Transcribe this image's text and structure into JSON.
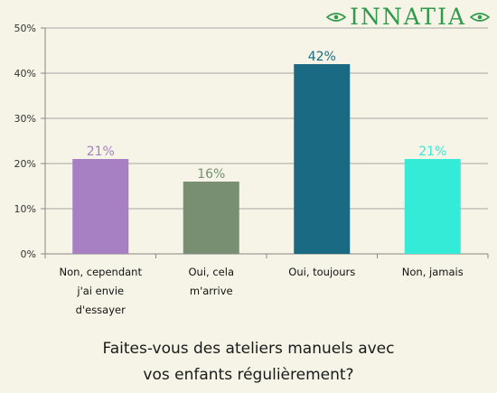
{
  "logo": {
    "text": "INNATIA",
    "icon": "leaf-icon",
    "color": "#2e9a4a"
  },
  "question": {
    "line1": "Faites-vous des ateliers manuels avec",
    "line2": "vos enfants régulièrement?"
  },
  "chart_data": {
    "type": "bar",
    "title": "",
    "categories": [
      [
        "Non, cependant",
        "j'ai envie",
        "d'essayer"
      ],
      [
        "Oui, cela",
        "m'arrive"
      ],
      [
        "Oui, toujours"
      ],
      [
        "Non, jamais"
      ]
    ],
    "values": [
      21,
      16,
      42,
      21
    ],
    "value_labels": [
      "21%",
      "16%",
      "42%",
      "21%"
    ],
    "colors": [
      "#a680c2",
      "#788f72",
      "#1a6a84",
      "#34ebd8"
    ],
    "ylim": [
      0,
      50
    ],
    "yticks": [
      0,
      10,
      20,
      30,
      40,
      50
    ],
    "ytick_labels": [
      "0%",
      "10%",
      "20%",
      "30%",
      "40%",
      "50%"
    ],
    "grid": true,
    "legend": "none"
  }
}
